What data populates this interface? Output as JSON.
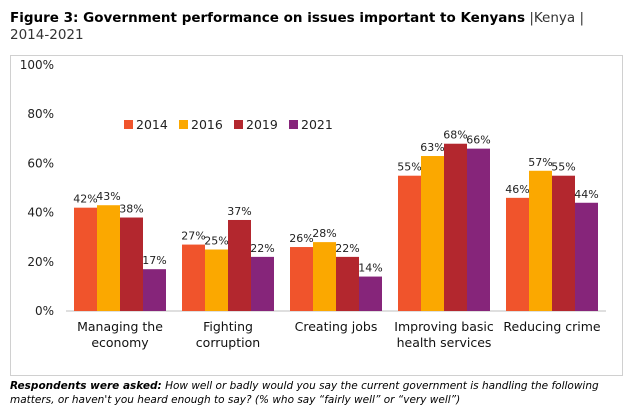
{
  "title": {
    "main": "Figure 3: Government performance on issues important to Kenyans",
    "sub": "|Kenya | 2014-2021"
  },
  "footer": {
    "lead": "Respondents were asked:",
    "text": "How well or badly would you say the current government is handling the following matters, or haven't you heard enough to say? (% who say “fairly well” or “very well”)"
  },
  "chart_data": {
    "type": "bar",
    "title": "Government performance on issues important to Kenyans",
    "categories": [
      [
        "Managing the",
        "economy"
      ],
      [
        "Fighting",
        "corruption"
      ],
      [
        "Creating jobs"
      ],
      [
        "Improving basic",
        "health services"
      ],
      [
        "Reducing crime"
      ]
    ],
    "series": [
      {
        "name": "2014",
        "color": "#f0542c",
        "values": [
          42,
          27,
          26,
          55,
          46
        ]
      },
      {
        "name": "2016",
        "color": "#fba800",
        "values": [
          43,
          25,
          28,
          63,
          57
        ]
      },
      {
        "name": "2019",
        "color": "#b3272e",
        "values": [
          38,
          37,
          22,
          68,
          55
        ]
      },
      {
        "name": "2021",
        "color": "#86257a",
        "values": [
          17,
          22,
          14,
          66,
          44
        ]
      }
    ],
    "yticks": [
      "0%",
      "20%",
      "40%",
      "60%",
      "80%",
      "100%"
    ],
    "ylim": [
      0,
      100
    ],
    "legend": "top-center",
    "grid": false
  }
}
